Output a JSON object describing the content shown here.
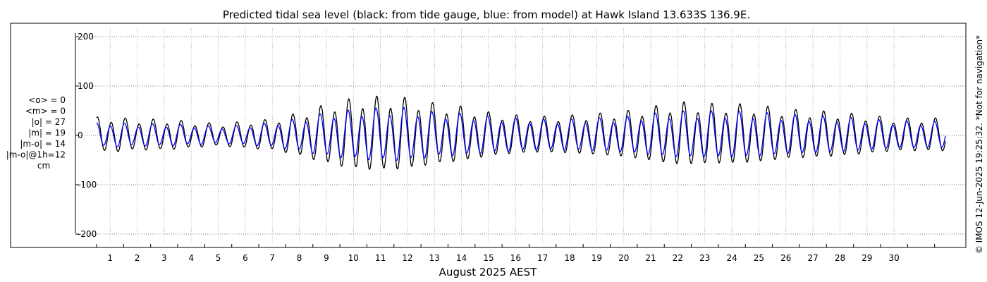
{
  "chart_data": {
    "type": "line",
    "title": "Predicted tidal sea level (black: from tide gauge, blue: from model) at Hawk Island 13.633S 136.9E.",
    "xlabel": "August 2025 AEST",
    "ylabel": "",
    "ylim": [
      -200,
      200
    ],
    "xlim": [
      0,
      31.4
    ],
    "grid": true,
    "x_ticks": [
      "1",
      "2",
      "3",
      "4",
      "5",
      "6",
      "7",
      "8",
      "9",
      "10",
      "11",
      "12",
      "13",
      "14",
      "15",
      "16",
      "17",
      "18",
      "19",
      "20",
      "21",
      "22",
      "23",
      "24",
      "25",
      "26",
      "27",
      "28",
      "29",
      "30"
    ],
    "y_ticks": [
      "200",
      "100",
      "0",
      "-100",
      "-200"
    ],
    "y_tick_values": [
      200,
      100,
      0,
      -100,
      -200
    ],
    "stats": [
      "<o> = 0",
      "<m> = 0",
      "|o| = 27",
      "|m| = 19",
      "|m-o| = 14",
      "|m-o|@1h=12",
      "cm"
    ],
    "credit": "© IMOS 12-Jun-2025 19:25:32. *Not for navigation*",
    "series": [
      {
        "name": "from tide gauge",
        "color": "#000000",
        "x": [
          0.55,
          1.55,
          2.55,
          3.55,
          4.55,
          5.55,
          6.55,
          7.55,
          8.55,
          9.55,
          10.55,
          11.55,
          12.55,
          13.55,
          14.55,
          15.55,
          16.55,
          17.55,
          18.55,
          19.55,
          20.55,
          21.55,
          22.55,
          23.55,
          24.55,
          25.55,
          26.55,
          27.55,
          28.55,
          29.55,
          30.55
        ],
        "amplitude": [
          32,
          28,
          28,
          24,
          20,
          25,
          28,
          40,
          55,
          65,
          68,
          65,
          55,
          50,
          40,
          35,
          33,
          35,
          38,
          42,
          50,
          58,
          55,
          55,
          52,
          45,
          43,
          40,
          35,
          30,
          30
        ]
      },
      {
        "name": "from model",
        "color": "#0000ff",
        "x": [
          0.55,
          1.55,
          2.55,
          3.55,
          4.55,
          5.55,
          6.55,
          7.55,
          8.55,
          9.55,
          10.55,
          11.55,
          12.55,
          13.55,
          14.55,
          15.55,
          16.55,
          17.55,
          18.55,
          19.55,
          20.55,
          21.55,
          22.55,
          23.55,
          24.55,
          25.55,
          26.55,
          27.55,
          28.55,
          29.55,
          30.55
        ],
        "amplitude": [
          22,
          20,
          20,
          18,
          15,
          18,
          22,
          30,
          40,
          45,
          48,
          48,
          40,
          38,
          33,
          30,
          28,
          28,
          30,
          32,
          38,
          42,
          42,
          42,
          40,
          36,
          34,
          32,
          28,
          25,
          24
        ]
      }
    ]
  }
}
